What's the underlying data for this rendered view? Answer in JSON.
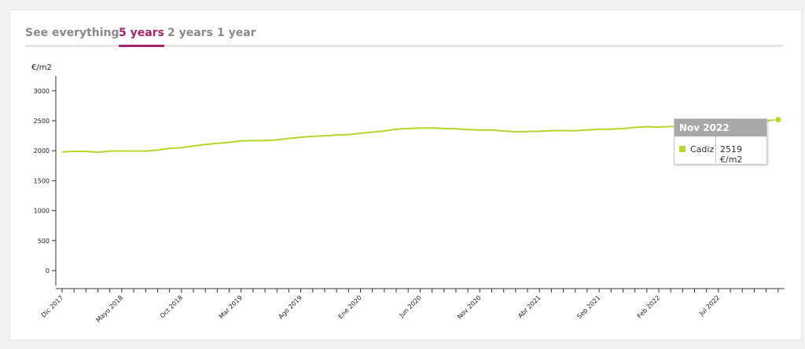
{
  "tabs": [
    {
      "label": "See everything",
      "active": false
    },
    {
      "label": "5 years",
      "active": true
    },
    {
      "label": "2 years",
      "active": false
    },
    {
      "label": "1 year",
      "active": false
    }
  ],
  "colors": {
    "accent": "#a3246e",
    "series": "#b5d62b",
    "axis": "#333333",
    "tooltip_header": "#a8a8a8"
  },
  "tooltip": {
    "date": "Nov 2022",
    "series": "Cadiz",
    "value": "2519 €/m2"
  },
  "chart_data": {
    "type": "line",
    "ylabel": "€/m2",
    "ylim": [
      -250,
      3250
    ],
    "yticks": [
      0,
      500,
      1000,
      1500,
      2000,
      2500,
      3000
    ],
    "grid": false,
    "x_tick_labels": [
      "Dic 2017",
      "Mayo 2018",
      "Oct 2018",
      "Mar 2019",
      "Ago 2019",
      "Ene 2020",
      "Jun 2020",
      "Nov 2020",
      "Abr 2021",
      "Sep 2021",
      "Feb 2022",
      "Jul 2022"
    ],
    "x_tick_labels_every": 5,
    "x_start": "2017-12",
    "x_end": "2022-11",
    "series": [
      {
        "name": "Cadiz",
        "values": [
          1980,
          1990,
          1990,
          1975,
          1995,
          1995,
          1995,
          1995,
          2010,
          2040,
          2050,
          2080,
          2105,
          2125,
          2140,
          2165,
          2170,
          2170,
          2180,
          2205,
          2225,
          2240,
          2250,
          2260,
          2270,
          2290,
          2310,
          2330,
          2360,
          2370,
          2380,
          2380,
          2370,
          2365,
          2355,
          2345,
          2345,
          2330,
          2315,
          2320,
          2325,
          2335,
          2335,
          2335,
          2345,
          2360,
          2360,
          2370,
          2390,
          2400,
          2395,
          2405,
          2405,
          2410,
          2430,
          2445,
          2460,
          2470,
          2480,
          2500,
          2519
        ]
      }
    ]
  }
}
